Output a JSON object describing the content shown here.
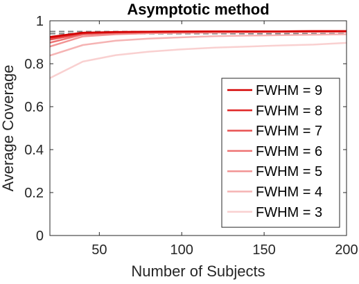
{
  "chart_data": {
    "type": "line",
    "title": "Asymptotic method",
    "xlabel": "Number of Subjects",
    "ylabel": "Average Coverage",
    "xlim": [
      20,
      200
    ],
    "ylim": [
      0,
      1
    ],
    "xticks": [
      50,
      100,
      150,
      200
    ],
    "yticks": [
      0,
      0.2,
      0.4,
      0.6,
      0.8,
      1
    ],
    "ytick_labels": [
      "0",
      "0.2",
      "0.4",
      "0.6",
      "0.8",
      "1"
    ],
    "grid": false,
    "legend_position": "bottom-right",
    "x": [
      20,
      40,
      60,
      80,
      100,
      120,
      140,
      160,
      180,
      200
    ],
    "reference_lines": [
      {
        "y": 0.95,
        "color": "#808080",
        "style": "dashed"
      },
      {
        "y": 0.94,
        "color": "#808080",
        "style": "dashed"
      }
    ],
    "series": [
      {
        "name": "FWHM = 9",
        "color": "#d40000",
        "values": [
          0.925,
          0.945,
          0.948,
          0.949,
          0.95,
          0.951,
          0.951,
          0.951,
          0.952,
          0.952
        ]
      },
      {
        "name": "FWHM = 8",
        "color": "#e02626",
        "values": [
          0.92,
          0.943,
          0.947,
          0.949,
          0.95,
          0.951,
          0.951,
          0.951,
          0.952,
          0.952
        ]
      },
      {
        "name": "FWHM = 7",
        "color": "#e85050",
        "values": [
          0.912,
          0.94,
          0.946,
          0.948,
          0.949,
          0.95,
          0.95,
          0.951,
          0.951,
          0.951
        ]
      },
      {
        "name": "FWHM = 6",
        "color": "#ee7373",
        "values": [
          0.898,
          0.936,
          0.943,
          0.946,
          0.948,
          0.949,
          0.949,
          0.95,
          0.95,
          0.951
        ]
      },
      {
        "name": "FWHM = 5",
        "color": "#f29494",
        "values": [
          0.88,
          0.927,
          0.937,
          0.942,
          0.944,
          0.945,
          0.946,
          0.947,
          0.948,
          0.948
        ]
      },
      {
        "name": "FWHM = 4",
        "color": "#f5b3b3",
        "values": [
          0.838,
          0.887,
          0.907,
          0.917,
          0.923,
          0.928,
          0.931,
          0.933,
          0.935,
          0.937
        ]
      },
      {
        "name": "FWHM = 3",
        "color": "#f9d0d0",
        "values": [
          0.733,
          0.81,
          0.84,
          0.856,
          0.867,
          0.875,
          0.88,
          0.885,
          0.889,
          0.897
        ]
      }
    ]
  }
}
